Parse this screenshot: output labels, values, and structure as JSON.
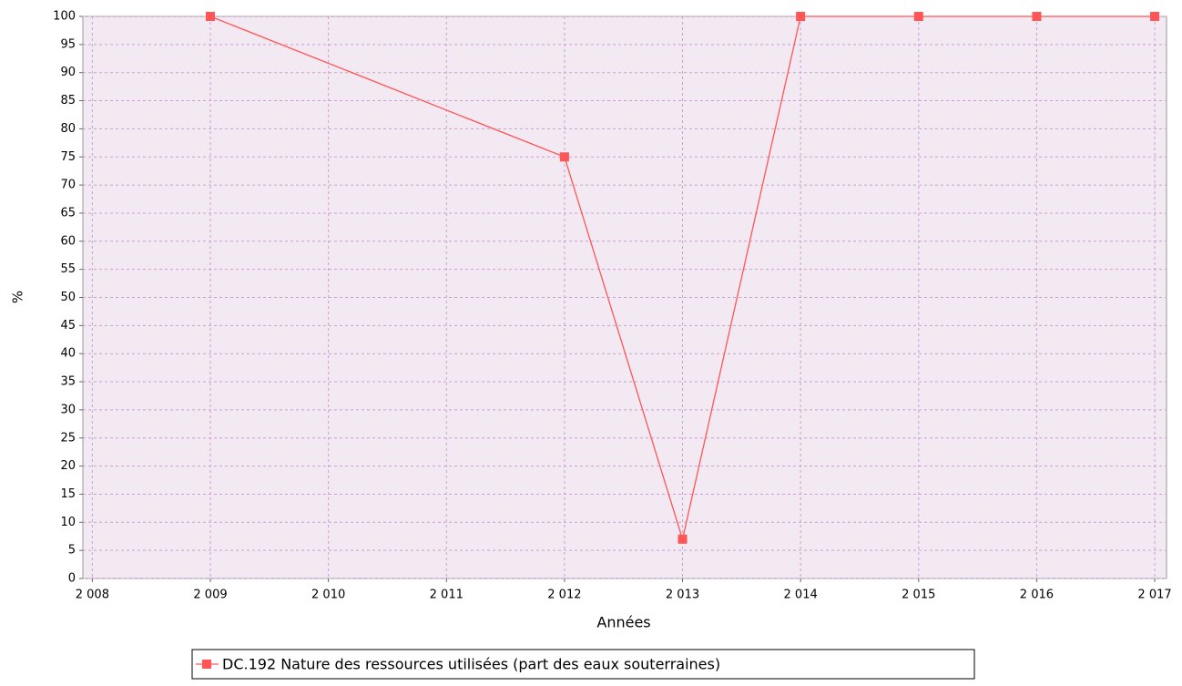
{
  "chart_data": {
    "type": "line",
    "x_label": "Années",
    "y_label": "%",
    "x": [
      2009,
      2012,
      2013,
      2014,
      2015,
      2016,
      2017
    ],
    "series": [
      {
        "name": "DC.192 Nature des ressources utilisées (part des eaux souterraines)",
        "color": "#ff5555",
        "values": [
          100,
          75,
          7,
          100,
          100,
          100,
          100
        ]
      }
    ],
    "xlim": [
      2007.92,
      2017.1
    ],
    "xticks": [
      {
        "value": 2008,
        "label": "2 008"
      },
      {
        "value": 2009,
        "label": "2 009"
      },
      {
        "value": 2010,
        "label": "2 010"
      },
      {
        "value": 2011,
        "label": "2 011"
      },
      {
        "value": 2012,
        "label": "2 012"
      },
      {
        "value": 2013,
        "label": "2 013"
      },
      {
        "value": 2014,
        "label": "2 014"
      },
      {
        "value": 2015,
        "label": "2 015"
      },
      {
        "value": 2016,
        "label": "2 016"
      },
      {
        "value": 2017,
        "label": "2 017"
      }
    ],
    "ylim": [
      0,
      100
    ],
    "yticks": [
      0,
      5,
      10,
      15,
      20,
      25,
      30,
      35,
      40,
      45,
      50,
      55,
      60,
      65,
      70,
      75,
      80,
      85,
      90,
      95,
      100
    ],
    "grid": true,
    "background": "#f3e9f3"
  }
}
